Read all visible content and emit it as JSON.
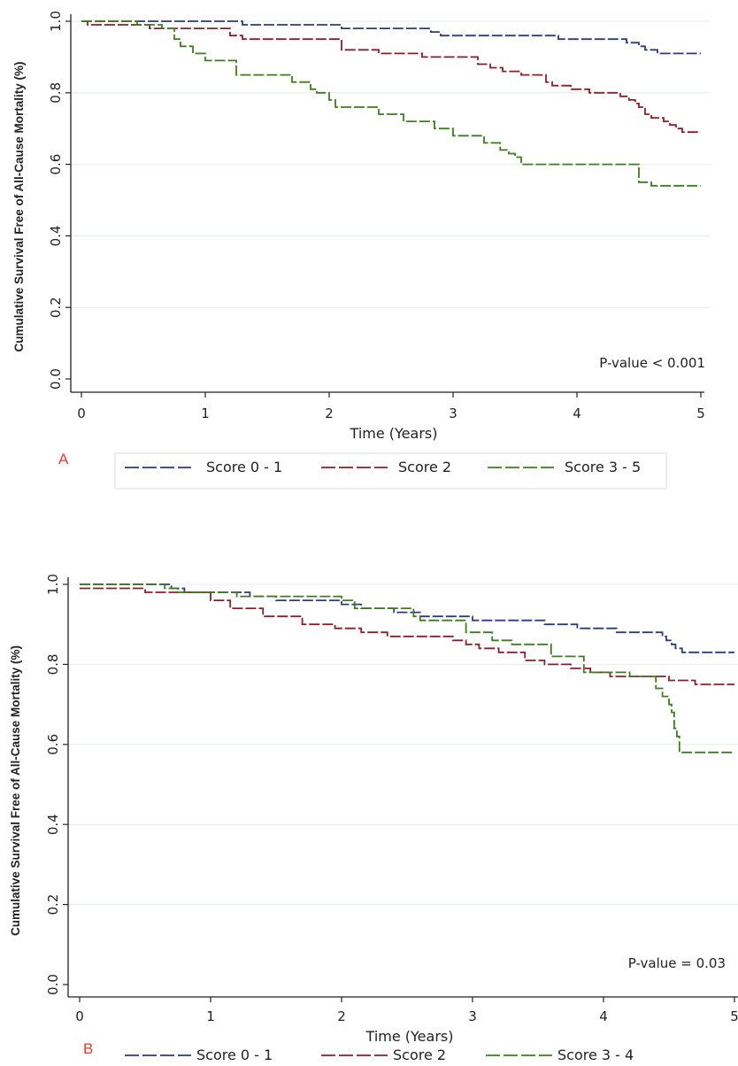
{
  "chart_data": [
    {
      "type": "line",
      "panel_label": "A",
      "ylabel": "Cumulative Survival  Free of All-Cause Mortality (%)",
      "xlabel": "Time (Years)",
      "xlim": [
        0,
        5
      ],
      "ylim": [
        0,
        1
      ],
      "x_ticks": [
        "0",
        "1",
        "2",
        "3",
        "4",
        "5"
      ],
      "y_ticks": [
        "0.0",
        "0.2",
        "0.4",
        "0.6",
        "0.8",
        "1.0"
      ],
      "grid": "horizontal",
      "annotation": "P-value < 0.001",
      "legend_position": "bottom",
      "series": [
        {
          "name": "Score 0 - 1",
          "color": "#2e3b7f",
          "x": [
            0,
            0.6,
            1.3,
            1.55,
            2.0,
            2.1,
            2.4,
            2.5,
            2.65,
            2.75,
            2.82,
            2.9,
            3.3,
            3.75,
            3.85,
            4.2,
            4.4,
            4.45,
            4.5,
            4.55,
            4.65,
            5.0
          ],
          "y": [
            1.0,
            1.0,
            0.99,
            0.99,
            0.99,
            0.98,
            0.98,
            0.98,
            0.98,
            0.98,
            0.97,
            0.96,
            0.96,
            0.96,
            0.95,
            0.95,
            0.94,
            0.94,
            0.93,
            0.92,
            0.91,
            0.91
          ]
        },
        {
          "name": "Score 2",
          "color": "#8b1e2b",
          "x": [
            0,
            0.05,
            0.55,
            0.9,
            1.2,
            1.3,
            1.9,
            2.1,
            2.4,
            2.75,
            3.15,
            3.2,
            3.3,
            3.4,
            3.55,
            3.75,
            3.8,
            3.95,
            4.1,
            4.35,
            4.42,
            4.47,
            4.5,
            4.55,
            4.6,
            4.7,
            4.75,
            4.8,
            4.85,
            5.0
          ],
          "y": [
            1.0,
            0.99,
            0.98,
            0.98,
            0.96,
            0.95,
            0.95,
            0.92,
            0.91,
            0.9,
            0.9,
            0.88,
            0.87,
            0.86,
            0.85,
            0.83,
            0.82,
            0.81,
            0.8,
            0.79,
            0.78,
            0.77,
            0.76,
            0.74,
            0.73,
            0.72,
            0.71,
            0.7,
            0.69,
            0.69
          ]
        },
        {
          "name": "Score 3 - 5",
          "color": "#3e7d1e",
          "x": [
            0,
            0.45,
            0.65,
            0.75,
            0.8,
            0.9,
            1.0,
            1.05,
            1.25,
            1.5,
            1.7,
            1.85,
            1.9,
            2.0,
            2.05,
            2.15,
            2.4,
            2.6,
            2.85,
            3.0,
            3.25,
            3.38,
            3.45,
            3.5,
            3.55,
            3.8,
            4.0,
            4.35,
            4.5,
            4.6,
            5.0
          ],
          "y": [
            1.0,
            0.99,
            0.98,
            0.95,
            0.93,
            0.91,
            0.89,
            0.89,
            0.85,
            0.85,
            0.83,
            0.81,
            0.8,
            0.78,
            0.76,
            0.76,
            0.74,
            0.72,
            0.7,
            0.68,
            0.66,
            0.64,
            0.63,
            0.62,
            0.6,
            0.6,
            0.6,
            0.6,
            0.55,
            0.54,
            0.54
          ]
        }
      ]
    },
    {
      "type": "line",
      "panel_label": "B",
      "ylabel": "Cumulative Survival  Free of All-Cause Mortality (%)",
      "xlabel": "Time (Years)",
      "xlim": [
        0,
        5
      ],
      "ylim": [
        0,
        1
      ],
      "x_ticks": [
        "0",
        "1",
        "2",
        "3",
        "4",
        "5"
      ],
      "y_ticks": [
        "0.0",
        "0.2",
        "0.4",
        "0.6",
        "0.8",
        "1.0"
      ],
      "grid": "horizontal",
      "annotation": "P-value = 0.03",
      "legend_position": "bottom",
      "series": [
        {
          "name": "Score 0 - 1",
          "color": "#2e3b7f",
          "x": [
            0,
            0.7,
            0.8,
            1.0,
            1.3,
            1.5,
            1.8,
            2.0,
            2.15,
            2.4,
            2.6,
            2.8,
            3.0,
            3.35,
            3.55,
            3.8,
            4.1,
            4.3,
            4.4,
            4.45,
            4.48,
            4.52,
            4.55,
            4.6,
            4.7,
            5.0
          ],
          "y": [
            1.0,
            0.99,
            0.98,
            0.98,
            0.97,
            0.96,
            0.96,
            0.95,
            0.94,
            0.93,
            0.92,
            0.92,
            0.91,
            0.91,
            0.9,
            0.89,
            0.88,
            0.88,
            0.88,
            0.87,
            0.86,
            0.85,
            0.84,
            0.83,
            0.83,
            0.83
          ]
        },
        {
          "name": "Score 2",
          "color": "#8b1e2b",
          "x": [
            0,
            0.15,
            0.5,
            1.0,
            1.15,
            1.4,
            1.7,
            1.95,
            2.15,
            2.35,
            2.6,
            2.85,
            2.95,
            3.05,
            3.2,
            3.4,
            3.55,
            3.75,
            3.9,
            4.05,
            4.3,
            4.5,
            4.6,
            4.7,
            5.0
          ],
          "y": [
            0.99,
            0.99,
            0.98,
            0.96,
            0.94,
            0.92,
            0.9,
            0.89,
            0.88,
            0.87,
            0.87,
            0.86,
            0.85,
            0.84,
            0.83,
            0.81,
            0.8,
            0.79,
            0.78,
            0.77,
            0.77,
            0.76,
            0.76,
            0.75,
            0.75
          ]
        },
        {
          "name": "Score 3 - 4",
          "color": "#3e7d1e",
          "x": [
            0,
            0.55,
            0.65,
            0.75,
            1.0,
            1.2,
            1.6,
            2.0,
            2.1,
            2.4,
            2.55,
            2.6,
            2.75,
            2.95,
            3.05,
            3.15,
            3.3,
            3.6,
            3.85,
            4.2,
            4.4,
            4.45,
            4.5,
            4.52,
            4.54,
            4.56,
            4.58,
            5.0
          ],
          "y": [
            1.0,
            1.0,
            0.99,
            0.98,
            0.98,
            0.97,
            0.97,
            0.96,
            0.94,
            0.94,
            0.92,
            0.91,
            0.91,
            0.88,
            0.88,
            0.86,
            0.85,
            0.82,
            0.78,
            0.77,
            0.74,
            0.72,
            0.7,
            0.68,
            0.64,
            0.62,
            0.58,
            0.58
          ]
        }
      ]
    }
  ]
}
